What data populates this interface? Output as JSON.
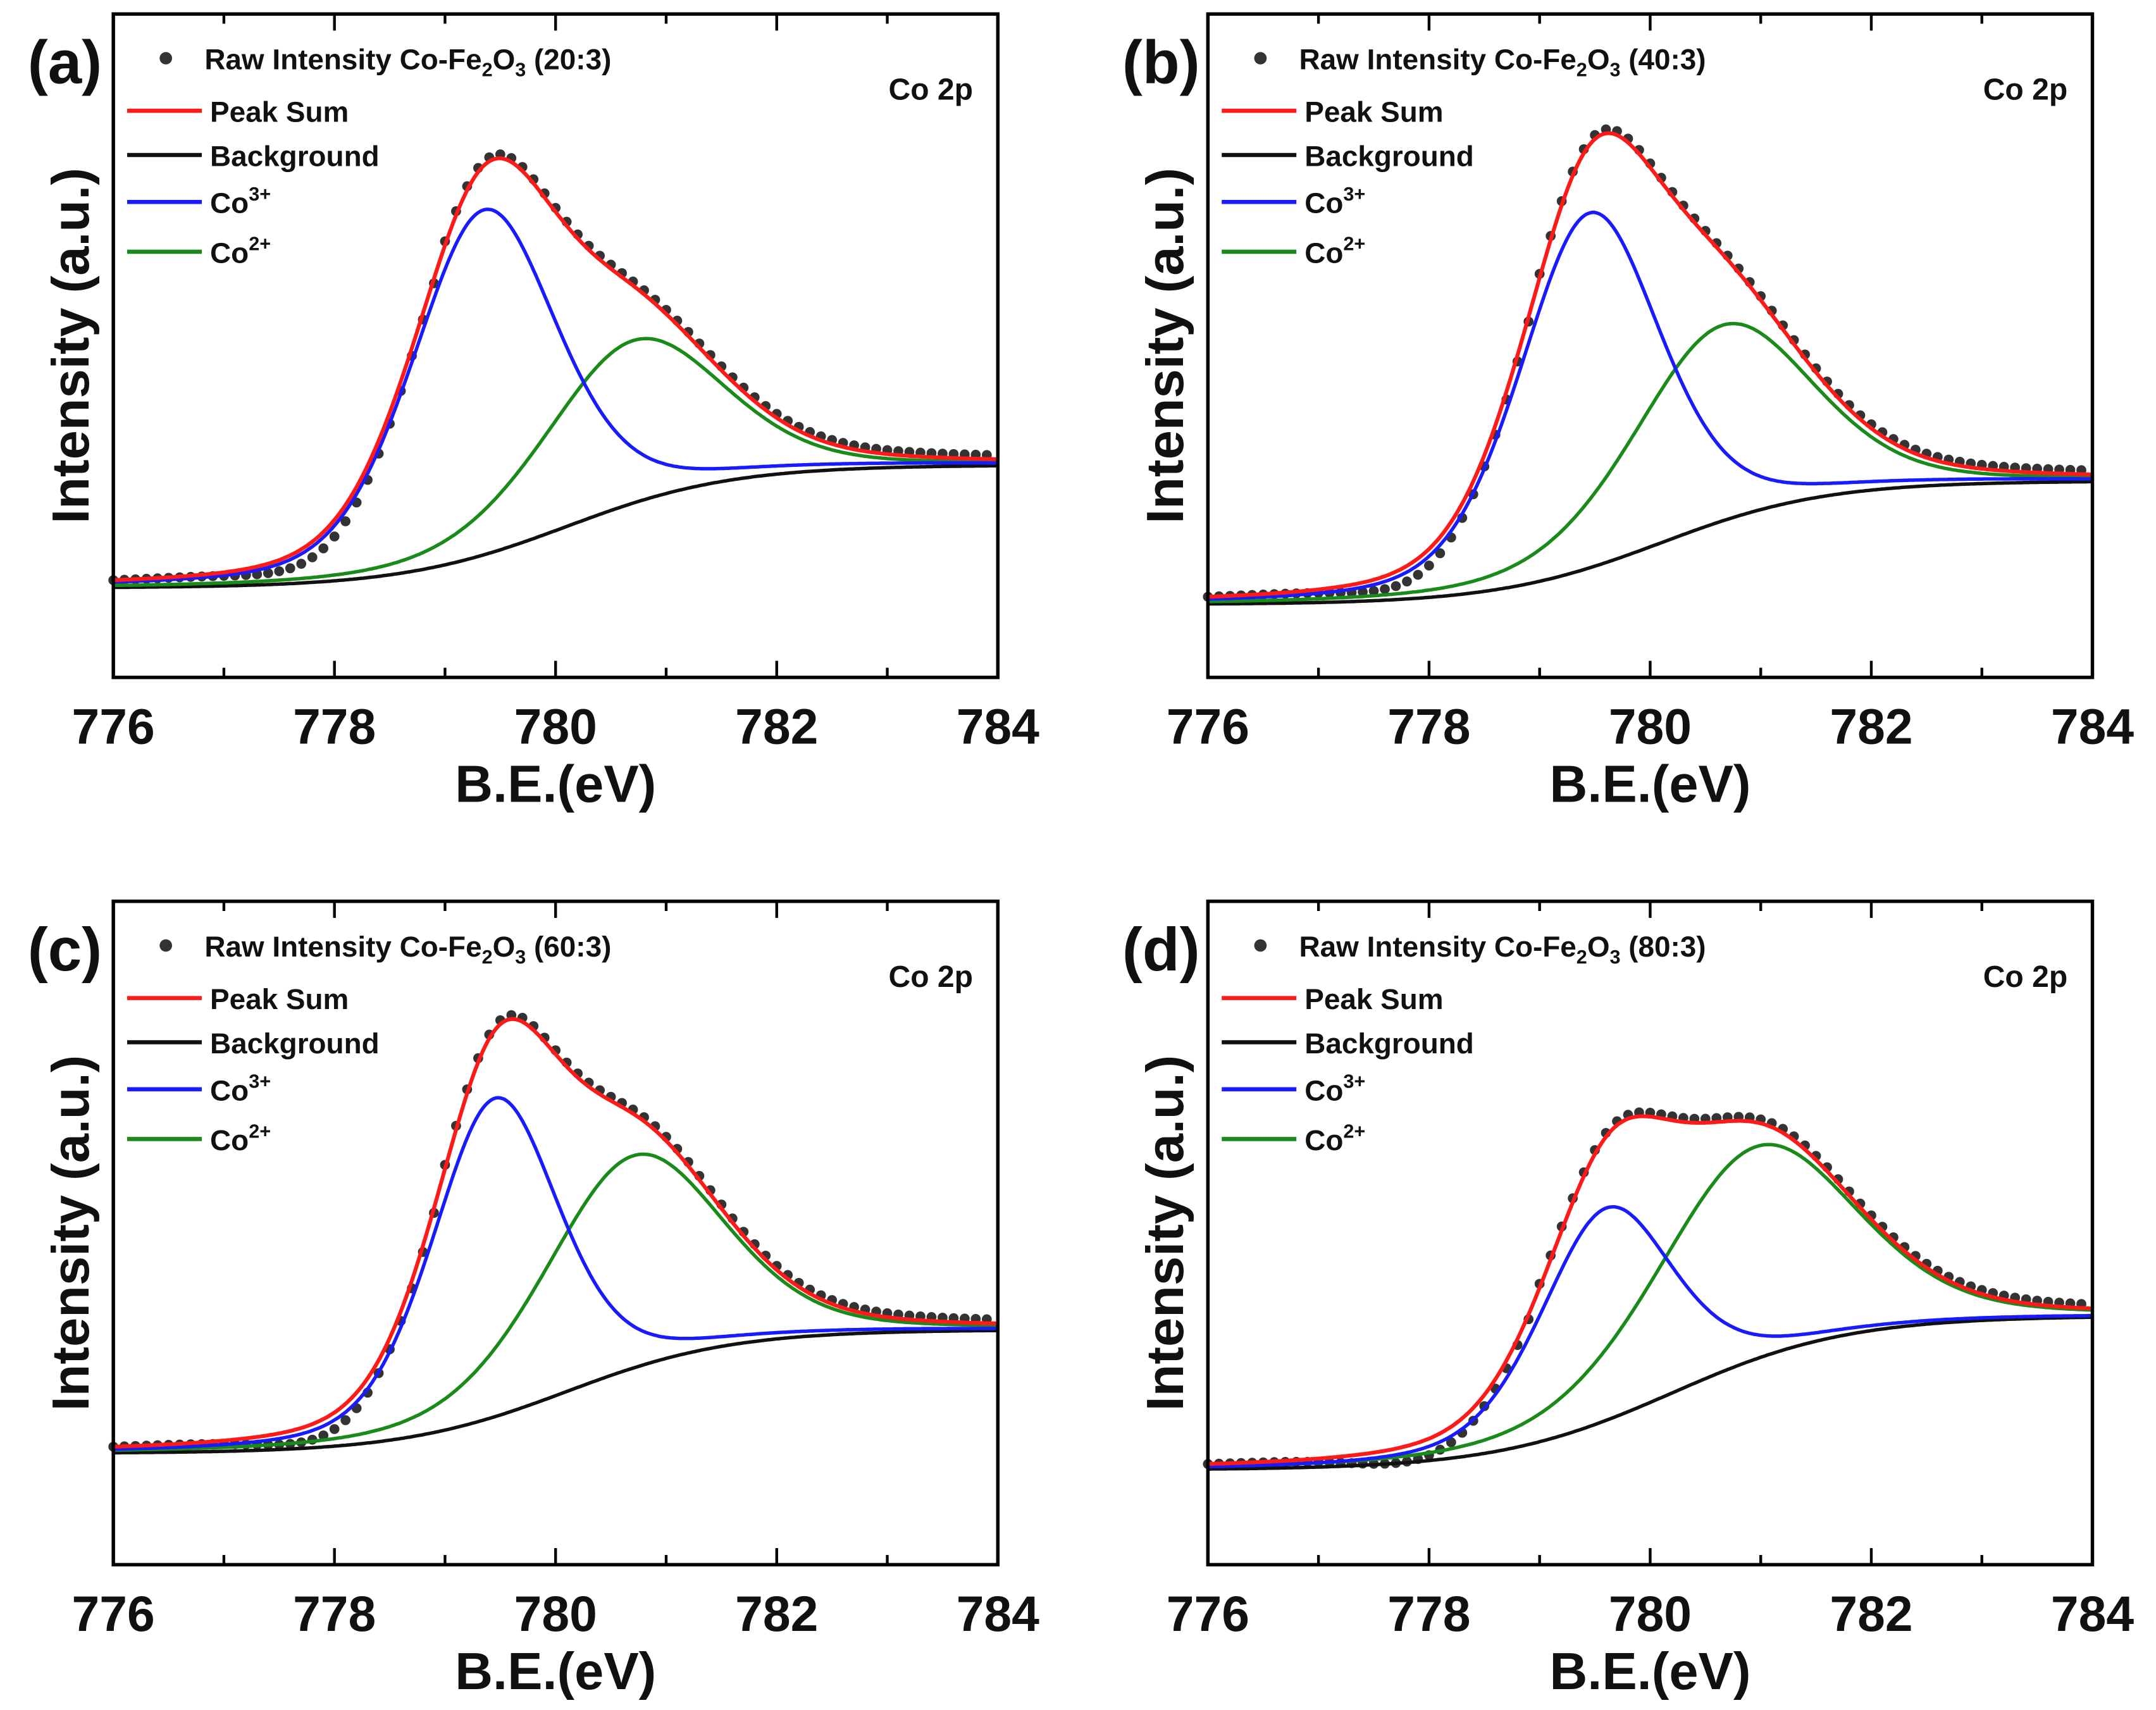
{
  "colors": {
    "raw": "#333333",
    "sum": "#ff1a1a",
    "background": "#111111",
    "co3": "#1a1aff",
    "co2": "#1a8a1a"
  },
  "chart_data": [
    {
      "type": "line",
      "panel_label": "(a)",
      "annotation": "Co 2p",
      "xlabel": "B.E.(eV)",
      "ylabel": "Intensity (a.u.)",
      "xlim": [
        776,
        784
      ],
      "ylim": [
        0,
        100
      ],
      "xticks": [
        "776",
        "778",
        "780",
        "782",
        "784"
      ],
      "legend": {
        "placement": "top-left",
        "raw": {
          "prefix": "Raw Intensity Co-Fe",
          "sub1": "2",
          "mid": "O",
          "sub2": "3",
          "suffix": " (20:3)"
        },
        "sum": "Peak Sum",
        "background": "Background",
        "co3": {
          "base": "Co",
          "sup": "3+"
        },
        "co2": {
          "base": "Co",
          "sup": "2+"
        }
      },
      "background": {
        "left": 13.5,
        "right": 32,
        "center": 780.1,
        "width": 0.75
      },
      "peaks": [
        {
          "name": "Co3+",
          "center": 779.35,
          "height": 52,
          "fwhm": 1.55
        },
        {
          "name": "Co2+",
          "center": 780.7,
          "height": 24.5,
          "fwhm": 1.9
        }
      ]
    },
    {
      "type": "line",
      "panel_label": "(b)",
      "annotation": "Co 2p",
      "xlabel": "B.E.(eV)",
      "ylabel": "Intensity (a.u.)",
      "xlim": [
        776,
        784
      ],
      "ylim": [
        0,
        100
      ],
      "xticks": [
        "776",
        "778",
        "780",
        "782",
        "784"
      ],
      "legend": {
        "placement": "top-left",
        "raw": {
          "prefix": "Raw Intensity Co-Fe",
          "sub1": "2",
          "mid": "O",
          "sub2": "3",
          "suffix": " (40:3)"
        },
        "sum": "Peak Sum",
        "background": "Background",
        "co3": {
          "base": "Co",
          "sup": "3+"
        },
        "co2": {
          "base": "Co",
          "sup": "2+"
        }
      },
      "background": {
        "left": 11,
        "right": 29.6,
        "center": 780.1,
        "width": 0.75
      },
      "peaks": [
        {
          "name": "Co3+",
          "center": 779.45,
          "height": 53.5,
          "fwhm": 1.5
        },
        {
          "name": "Co2+",
          "center": 780.65,
          "height": 29.5,
          "fwhm": 1.9
        }
      ]
    },
    {
      "type": "line",
      "panel_label": "(c)",
      "annotation": "Co 2p",
      "xlabel": "B.E.(eV)",
      "ylabel": "Intensity (a.u.)",
      "xlim": [
        776,
        784
      ],
      "ylim": [
        0,
        100
      ],
      "xticks": [
        "776",
        "778",
        "780",
        "782",
        "784"
      ],
      "legend": {
        "placement": "top-left",
        "raw": {
          "prefix": "Raw Intensity Co-Fe",
          "sub1": "2",
          "mid": "O",
          "sub2": "3",
          "suffix": " (60:3)"
        },
        "sum": "Peak Sum",
        "background": "Background",
        "co3": {
          "base": "Co",
          "sup": "3+"
        },
        "co2": {
          "base": "Co",
          "sup": "2+"
        }
      },
      "background": {
        "left": 16.8,
        "right": 35.4,
        "center": 780.1,
        "width": 0.75
      },
      "peaks": [
        {
          "name": "Co3+",
          "center": 779.45,
          "height": 48,
          "fwhm": 1.35
        },
        {
          "name": "Co2+",
          "center": 780.7,
          "height": 32,
          "fwhm": 1.9
        }
      ]
    },
    {
      "type": "line",
      "panel_label": "(d)",
      "annotation": "Co 2p",
      "xlabel": "B.E.(eV)",
      "ylabel": "Intensity (a.u.)",
      "xlim": [
        776,
        784
      ],
      "ylim": [
        0,
        100
      ],
      "xticks": [
        "776",
        "778",
        "780",
        "782",
        "784"
      ],
      "legend": {
        "placement": "top-left",
        "raw": {
          "prefix": "Raw Intensity Co-Fe",
          "sub1": "2",
          "mid": "O",
          "sub2": "3",
          "suffix": " (80:3)"
        },
        "sum": "Peak Sum",
        "background": "Background",
        "co3": {
          "base": "Co",
          "sup": "3+"
        },
        "co2": {
          "base": "Co",
          "sup": "2+"
        }
      },
      "background": {
        "left": 14.3,
        "right": 37.5,
        "center": 780.2,
        "width": 0.8
      },
      "peaks": [
        {
          "name": "Co3+",
          "center": 779.6,
          "height": 32,
          "fwhm": 1.4
        },
        {
          "name": "Co2+",
          "center": 780.95,
          "height": 32,
          "fwhm": 2.1
        }
      ]
    }
  ]
}
